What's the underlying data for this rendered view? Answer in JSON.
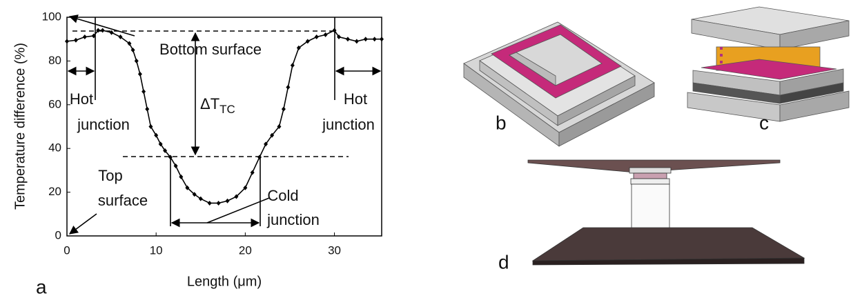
{
  "chart_data": {
    "type": "line",
    "x_label": "Length (μm)",
    "y_label": "Temperature difference (%)",
    "xlim": [
      0,
      35.3
    ],
    "ylim": [
      0,
      100
    ],
    "xticks": [
      0,
      10,
      20,
      30
    ],
    "yticks": [
      0,
      20,
      40,
      60,
      80,
      100
    ],
    "series": [
      {
        "color": "#000000",
        "x": [
          0,
          1,
          2,
          3,
          3.5,
          4,
          5,
          6,
          7,
          7.4,
          7.8,
          8.2,
          8.6,
          9,
          9.4,
          10,
          10.5,
          11,
          11.6,
          12.2,
          12.8,
          13.5,
          14.3,
          15,
          16,
          17,
          18,
          19,
          20,
          20.8,
          21.6,
          22.3,
          23,
          23.8,
          24.3,
          24.8,
          25.3,
          26,
          27,
          28,
          29,
          30,
          30.5,
          31.5,
          32.5,
          33.5,
          34.5,
          35.3
        ],
        "values": [
          89,
          89.5,
          91,
          91.5,
          94,
          94,
          93,
          91,
          88,
          85,
          80,
          74,
          66,
          58,
          50,
          46,
          42,
          39,
          36,
          32,
          27,
          22,
          19,
          17,
          15,
          15,
          16,
          18,
          22,
          29,
          36,
          42,
          46,
          50,
          58,
          68,
          78,
          86,
          89,
          91,
          92,
          94,
          91,
          90,
          89,
          90,
          90,
          90
        ]
      }
    ],
    "annotations": {
      "bottom_surface": "Bottom surface",
      "delta_main": "ΔT",
      "delta_sub": "TC",
      "hot_left": [
        "Hot",
        "junction"
      ],
      "hot_right": [
        "Hot",
        "junction"
      ],
      "top_surface": [
        "Top",
        "surface"
      ],
      "cold": [
        "Cold",
        "junction"
      ]
    }
  },
  "panels": {
    "a": "a",
    "b": "b",
    "c": "c",
    "d": "d"
  }
}
